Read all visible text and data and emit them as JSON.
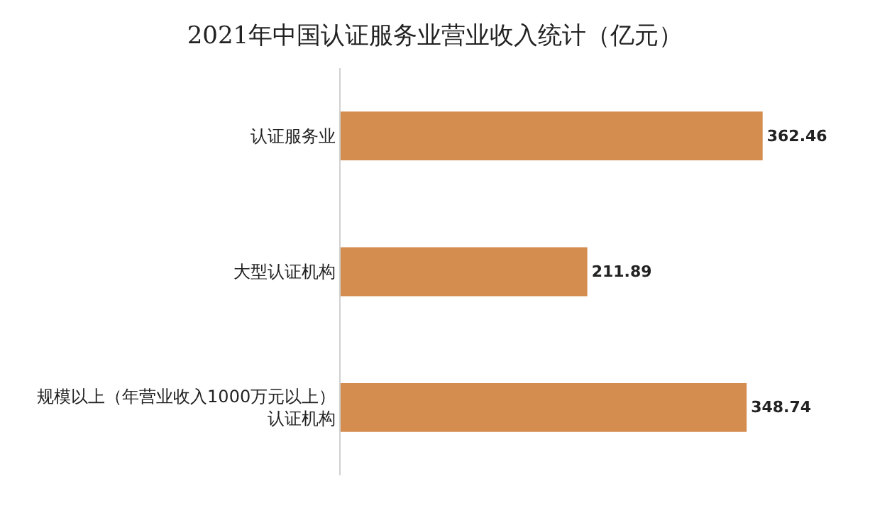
{
  "chart_data": {
    "type": "bar",
    "orientation": "horizontal",
    "title": "2021年中国认证服务业营业收入统计（亿元）",
    "categories": [
      "认证服务业",
      "大型认证机构",
      "规模以上（年营业收入1000万元以上）认证机构"
    ],
    "values": [
      362.46,
      211.89,
      348.74
    ],
    "color": "#d58c4f",
    "data_labels": true,
    "tick_labels": "y"
  }
}
